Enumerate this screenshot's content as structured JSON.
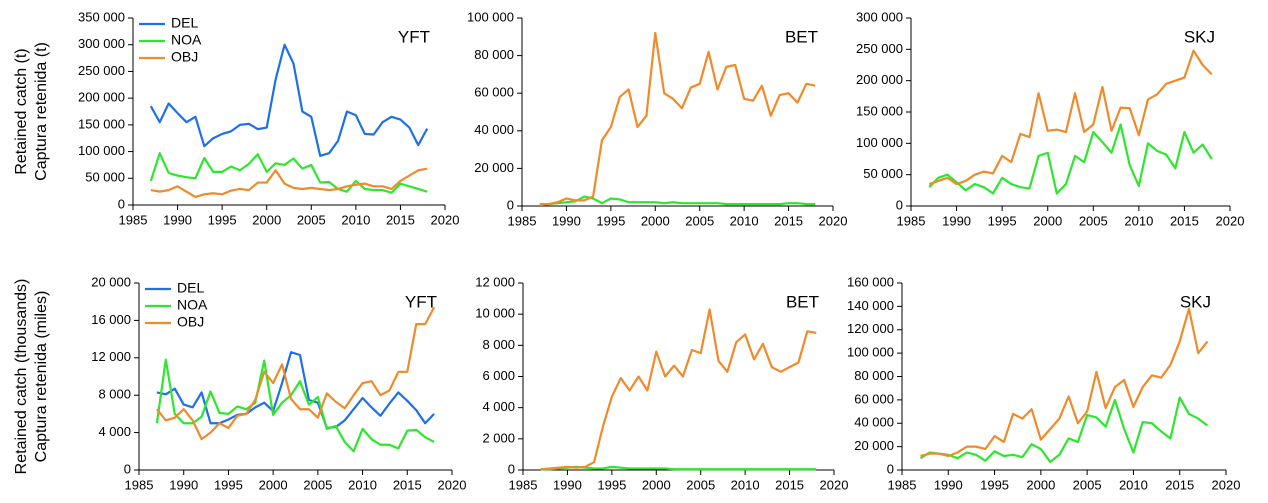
{
  "chart_data": [
    {
      "type": "line",
      "title": "YFT",
      "ylabel": [
        "Retained catch (t)",
        "Captura retenida (t)"
      ],
      "legend": true,
      "x": [
        1987,
        1988,
        1989,
        1990,
        1991,
        1992,
        1993,
        1994,
        1995,
        1996,
        1997,
        1998,
        1999,
        2000,
        2001,
        2002,
        2003,
        2004,
        2005,
        2006,
        2007,
        2008,
        2009,
        2010,
        2011,
        2012,
        2013,
        2014,
        2015,
        2016,
        2017,
        2018
      ],
      "series": [
        {
          "name": "DEL",
          "color": "#1f6fe6",
          "values": [
            185000,
            155000,
            190000,
            172000,
            155000,
            165000,
            110000,
            125000,
            133000,
            138000,
            150000,
            152000,
            142000,
            145000,
            235000,
            300000,
            265000,
            175000,
            165000,
            92000,
            97000,
            120000,
            175000,
            168000,
            133000,
            132000,
            155000,
            165000,
            160000,
            145000,
            112000,
            143000
          ]
        },
        {
          "name": "NOA",
          "color": "#2ee62e",
          "values": [
            45000,
            97000,
            60000,
            55000,
            52000,
            50000,
            88000,
            62000,
            62000,
            72000,
            65000,
            77000,
            95000,
            62000,
            78000,
            75000,
            87000,
            68000,
            75000,
            42000,
            43000,
            30000,
            25000,
            45000,
            30000,
            28000,
            28000,
            23000,
            40000,
            35000,
            30000,
            25000
          ]
        },
        {
          "name": "OBJ",
          "color": "#f08a2a",
          "values": [
            28000,
            25000,
            28000,
            35000,
            25000,
            15000,
            20000,
            22000,
            20000,
            27000,
            30000,
            28000,
            42000,
            42000,
            65000,
            40000,
            32000,
            30000,
            32000,
            30000,
            28000,
            30000,
            35000,
            38000,
            40000,
            35000,
            35000,
            30000,
            45000,
            55000,
            65000,
            68000
          ]
        }
      ],
      "xlim": [
        1985,
        2020
      ],
      "xticks": [
        1985,
        1990,
        1995,
        2000,
        2005,
        2010,
        2015,
        2020
      ],
      "ylim": [
        0,
        350000
      ],
      "yticks": [
        0,
        {
          "value": 50000,
          "label": "50 000"
        },
        {
          "value": 100000,
          "label": "100 000"
        },
        {
          "value": 150000,
          "label": "150 000"
        },
        {
          "value": 200000,
          "label": "200 000"
        },
        {
          "value": 250000,
          "label": "250 000"
        },
        {
          "value": 300000,
          "label": "300 000"
        },
        {
          "value": 350000,
          "label": "350 000"
        }
      ]
    },
    {
      "type": "line",
      "title": "BET",
      "legend": false,
      "x": [
        1987,
        1988,
        1989,
        1990,
        1991,
        1992,
        1993,
        1994,
        1995,
        1996,
        1997,
        1998,
        1999,
        2000,
        2001,
        2002,
        2003,
        2004,
        2005,
        2006,
        2007,
        2008,
        2009,
        2010,
        2011,
        2012,
        2013,
        2014,
        2015,
        2016,
        2017,
        2018
      ],
      "series": [
        {
          "name": "NOA",
          "color": "#2ee62e",
          "values": [
            500,
            1000,
            1500,
            2000,
            2500,
            5000,
            4000,
            1500,
            4000,
            3500,
            2000,
            2000,
            2000,
            2000,
            1500,
            2000,
            1500,
            1500,
            1500,
            1500,
            1500,
            1000,
            1000,
            1000,
            1000,
            1000,
            1000,
            1000,
            1500,
            1500,
            1000,
            1000
          ]
        },
        {
          "name": "OBJ",
          "color": "#f08a2a",
          "values": [
            1000,
            1000,
            2000,
            4000,
            3000,
            3000,
            5000,
            35000,
            42000,
            58000,
            62000,
            42000,
            48000,
            92000,
            60000,
            57000,
            52000,
            63000,
            65000,
            82000,
            62000,
            74000,
            75000,
            57000,
            56000,
            64000,
            48000,
            59000,
            60000,
            55000,
            65000,
            64000
          ]
        }
      ],
      "xlim": [
        1985,
        2020
      ],
      "xticks": [
        1985,
        1990,
        1995,
        2000,
        2005,
        2010,
        2015,
        2020
      ],
      "ylim": [
        0,
        100000
      ],
      "yticks": [
        0,
        {
          "value": 20000,
          "label": "20 000"
        },
        {
          "value": 40000,
          "label": "40 000"
        },
        {
          "value": 60000,
          "label": "60 000"
        },
        {
          "value": 80000,
          "label": "80 000"
        },
        {
          "value": 100000,
          "label": "100 000"
        }
      ]
    },
    {
      "type": "line",
      "title": "SKJ",
      "legend": false,
      "x": [
        1987,
        1988,
        1989,
        1990,
        1991,
        1992,
        1993,
        1994,
        1995,
        1996,
        1997,
        1998,
        1999,
        2000,
        2001,
        2002,
        2003,
        2004,
        2005,
        2006,
        2007,
        2008,
        2009,
        2010,
        2011,
        2012,
        2013,
        2014,
        2015,
        2016,
        2017,
        2018
      ],
      "series": [
        {
          "name": "NOA",
          "color": "#2ee62e",
          "values": [
            30000,
            45000,
            50000,
            38000,
            25000,
            35000,
            30000,
            20000,
            45000,
            35000,
            30000,
            28000,
            80000,
            85000,
            20000,
            35000,
            80000,
            70000,
            118000,
            102000,
            85000,
            130000,
            65000,
            32000,
            100000,
            88000,
            82000,
            60000,
            118000,
            85000,
            98000,
            75000
          ]
        },
        {
          "name": "OBJ",
          "color": "#f08a2a",
          "values": [
            35000,
            40000,
            45000,
            35000,
            40000,
            50000,
            55000,
            52000,
            80000,
            70000,
            115000,
            110000,
            180000,
            120000,
            122000,
            118000,
            180000,
            118000,
            130000,
            190000,
            120000,
            157000,
            156000,
            113000,
            170000,
            178000,
            195000,
            200000,
            205000,
            248000,
            225000,
            210000
          ]
        }
      ],
      "xlim": [
        1985,
        2020
      ],
      "xticks": [
        1985,
        1990,
        1995,
        2000,
        2005,
        2010,
        2015,
        2020
      ],
      "ylim": [
        0,
        300000
      ],
      "yticks": [
        0,
        {
          "value": 50000,
          "label": "50 000"
        },
        {
          "value": 100000,
          "label": "100 000"
        },
        {
          "value": 150000,
          "label": "150 000"
        },
        {
          "value": 200000,
          "label": "200 000"
        },
        {
          "value": 250000,
          "label": "250 000"
        },
        {
          "value": 300000,
          "label": "300 000"
        }
      ]
    },
    {
      "type": "line",
      "title": "YFT",
      "ylabel": [
        "Retained catch (thousands)",
        "Captura retenida (miles)"
      ],
      "legend": true,
      "x": [
        1987,
        1988,
        1989,
        1990,
        1991,
        1992,
        1993,
        1994,
        1995,
        1996,
        1997,
        1998,
        1999,
        2000,
        2001,
        2002,
        2003,
        2004,
        2005,
        2006,
        2007,
        2008,
        2009,
        2010,
        2011,
        2012,
        2013,
        2014,
        2015,
        2016,
        2017,
        2018
      ],
      "series": [
        {
          "name": "DEL",
          "color": "#1f6fe6",
          "values": [
            8300,
            8100,
            8700,
            7000,
            6700,
            8300,
            5000,
            5000,
            5400,
            5900,
            6000,
            6700,
            7200,
            6300,
            9300,
            12600,
            12300,
            7500,
            7200,
            4500,
            4600,
            5300,
            6500,
            7700,
            6700,
            5800,
            7100,
            8300,
            7400,
            6400,
            5000,
            6000
          ]
        },
        {
          "name": "NOA",
          "color": "#2ee62e",
          "values": [
            5000,
            11800,
            6000,
            5000,
            5000,
            5700,
            8400,
            6100,
            6000,
            6800,
            6500,
            7200,
            11700,
            5900,
            7200,
            8000,
            9500,
            7000,
            7800,
            4400,
            4700,
            3000,
            2000,
            4400,
            3300,
            2700,
            2700,
            2300,
            4200,
            4300,
            3500,
            3000
          ]
        },
        {
          "name": "OBJ",
          "color": "#f08a2a",
          "values": [
            6500,
            5300,
            5600,
            6500,
            5300,
            3300,
            4000,
            5000,
            4500,
            5800,
            6000,
            7500,
            10500,
            9300,
            11300,
            7600,
            6500,
            6500,
            5600,
            8200,
            7300,
            6600,
            8000,
            9300,
            9500,
            8000,
            8500,
            10500,
            10500,
            15600,
            15600,
            17400
          ]
        }
      ],
      "xlim": [
        1985,
        2020
      ],
      "xticks": [
        1985,
        1990,
        1995,
        2000,
        2005,
        2010,
        2015,
        2020
      ],
      "ylim": [
        0,
        20000
      ],
      "yticks": [
        0,
        {
          "value": 4000,
          "label": "4 000"
        },
        {
          "value": 8000,
          "label": "8 000"
        },
        {
          "value": 12000,
          "label": "12 000"
        },
        {
          "value": 16000,
          "label": "16 000"
        },
        {
          "value": 20000,
          "label": "20 000"
        }
      ]
    },
    {
      "type": "line",
      "title": "BET",
      "legend": false,
      "x": [
        1987,
        1988,
        1989,
        1990,
        1991,
        1992,
        1993,
        1994,
        1995,
        1996,
        1997,
        1998,
        1999,
        2000,
        2001,
        2002,
        2003,
        2004,
        2005,
        2006,
        2007,
        2008,
        2009,
        2010,
        2011,
        2012,
        2013,
        2014,
        2015,
        2016,
        2017,
        2018
      ],
      "series": [
        {
          "name": "NOA",
          "color": "#2ee62e",
          "values": [
            50,
            50,
            100,
            150,
            200,
            150,
            100,
            100,
            200,
            150,
            100,
            100,
            100,
            100,
            100,
            50,
            50,
            50,
            50,
            50,
            50,
            50,
            50,
            50,
            50,
            50,
            50,
            50,
            50,
            50,
            50,
            50
          ]
        },
        {
          "name": "OBJ",
          "color": "#f08a2a",
          "values": [
            50,
            100,
            150,
            200,
            150,
            200,
            500,
            2800,
            4700,
            5900,
            5100,
            6000,
            5100,
            7600,
            6000,
            6700,
            6000,
            7700,
            7500,
            10300,
            7000,
            6300,
            8200,
            8700,
            7100,
            8100,
            6600,
            6300,
            6600,
            6900,
            8900,
            8800
          ]
        }
      ],
      "xlim": [
        1985,
        2020
      ],
      "xticks": [
        1985,
        1990,
        1995,
        2000,
        2005,
        2010,
        2015,
        2020
      ],
      "ylim": [
        0,
        12000
      ],
      "yticks": [
        0,
        {
          "value": 2000,
          "label": "2 000"
        },
        {
          "value": 4000,
          "label": "4 000"
        },
        {
          "value": 6000,
          "label": "6 000"
        },
        {
          "value": 8000,
          "label": "8 000"
        },
        {
          "value": 10000,
          "label": "10 000"
        },
        {
          "value": 12000,
          "label": "12 000"
        }
      ]
    },
    {
      "type": "line",
      "title": "SKJ",
      "legend": false,
      "x": [
        1987,
        1988,
        1989,
        1990,
        1991,
        1992,
        1993,
        1994,
        1995,
        1996,
        1997,
        1998,
        1999,
        2000,
        2001,
        2002,
        2003,
        2004,
        2005,
        2006,
        2007,
        2008,
        2009,
        2010,
        2011,
        2012,
        2013,
        2014,
        2015,
        2016,
        2017,
        2018
      ],
      "series": [
        {
          "name": "NOA",
          "color": "#2ee62e",
          "values": [
            10000,
            15000,
            14000,
            13000,
            10000,
            15000,
            13000,
            8000,
            16000,
            12000,
            13000,
            11000,
            22000,
            18000,
            7000,
            13000,
            27000,
            24000,
            47000,
            45000,
            37000,
            60000,
            35000,
            15000,
            41000,
            40000,
            33000,
            27000,
            62000,
            48000,
            44000,
            38000
          ]
        },
        {
          "name": "OBJ",
          "color": "#f08a2a",
          "values": [
            12000,
            14000,
            14000,
            12000,
            15000,
            20000,
            20000,
            18000,
            29000,
            24000,
            48000,
            44000,
            52000,
            26000,
            35000,
            44000,
            63000,
            40000,
            50000,
            84000,
            53000,
            71000,
            77000,
            54000,
            71000,
            81000,
            79000,
            90000,
            110000,
            138000,
            100000,
            110000
          ]
        }
      ],
      "xlim": [
        1985,
        2020
      ],
      "xticks": [
        1985,
        1990,
        1995,
        2000,
        2005,
        2010,
        2015,
        2020
      ],
      "ylim": [
        0,
        160000
      ],
      "yticks": [
        0,
        {
          "value": 20000,
          "label": "20 000"
        },
        {
          "value": 40000,
          "label": "40 000"
        },
        {
          "value": 60000,
          "label": "60 000"
        },
        {
          "value": 80000,
          "label": "80 000"
        },
        {
          "value": 100000,
          "label": "100 000"
        },
        {
          "value": 120000,
          "label": "120 000"
        },
        {
          "value": 140000,
          "label": "140 000"
        },
        {
          "value": 160000,
          "label": "160 000"
        }
      ]
    }
  ]
}
